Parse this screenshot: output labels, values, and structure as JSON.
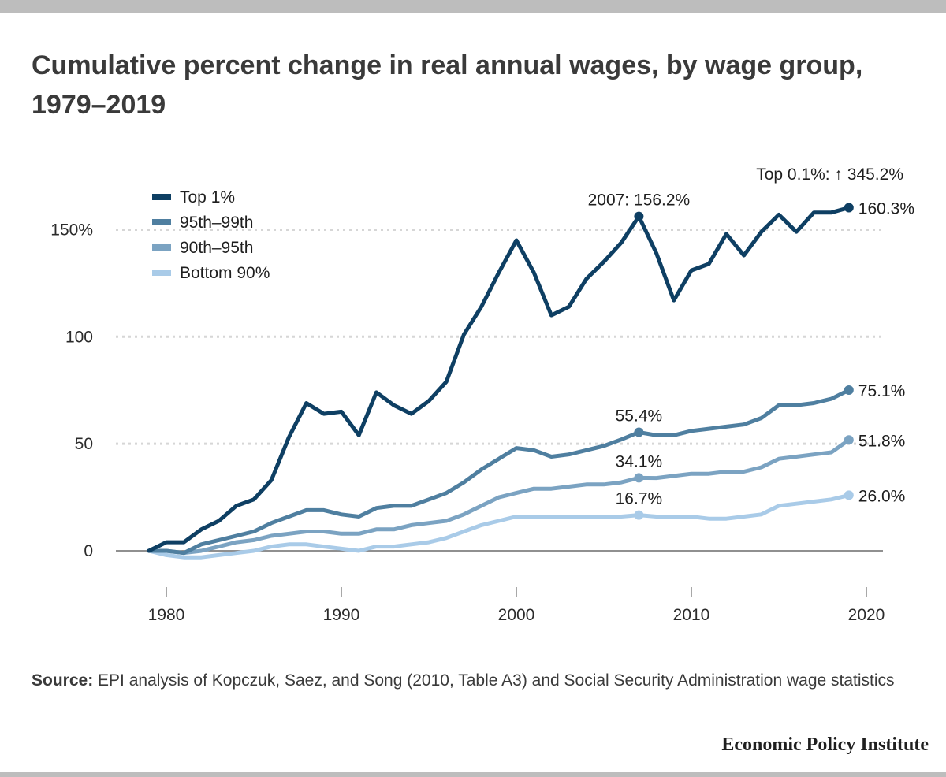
{
  "title": "Cumulative percent change in real annual wages, by wage group, 1979–2019",
  "source": {
    "label": "Source:",
    "text": " EPI analysis of Kopczuk, Saez, and Song (2010, Table A3) and Social Security Administration wage statistics"
  },
  "brand": "Economic Policy Institute",
  "chart_data": {
    "type": "line",
    "xlim": [
      1977,
      2021
    ],
    "ylim": [
      -20,
      170
    ],
    "x_ticks": [
      1980,
      1990,
      2000,
      2010,
      2020
    ],
    "x_tick_labels": [
      "1980",
      "1990",
      "2000",
      "2010",
      "2020"
    ],
    "y_ticks": [
      0,
      50,
      100,
      150
    ],
    "y_tick_labels": [
      "0",
      "50",
      "100",
      "150%"
    ],
    "grid": "horizontal dotted",
    "legend_position": "top-left",
    "x": [
      1979,
      1980,
      1981,
      1982,
      1983,
      1984,
      1985,
      1986,
      1987,
      1988,
      1989,
      1990,
      1991,
      1992,
      1993,
      1994,
      1995,
      1996,
      1997,
      1998,
      1999,
      2000,
      2001,
      2002,
      2003,
      2004,
      2005,
      2006,
      2007,
      2008,
      2009,
      2010,
      2011,
      2012,
      2013,
      2014,
      2015,
      2016,
      2017,
      2018,
      2019
    ],
    "series": [
      {
        "name": "Top 1%",
        "color": "#0e3f63",
        "values": [
          0,
          4,
          4,
          10,
          14,
          21,
          24,
          33,
          53,
          69,
          64,
          65,
          54,
          74,
          68,
          64,
          70,
          79,
          101,
          114,
          130,
          145,
          130,
          110,
          114,
          127,
          135,
          144,
          156.2,
          139,
          117,
          131,
          134,
          148,
          138,
          149,
          157,
          149,
          158,
          158,
          160.3
        ]
      },
      {
        "name": "95th–99th",
        "color": "#4f7fa0",
        "values": [
          0,
          0,
          -1,
          3,
          5,
          7,
          9,
          13,
          16,
          19,
          19,
          17,
          16,
          20,
          21,
          21,
          24,
          27,
          32,
          38,
          43,
          48,
          47,
          44,
          45,
          47,
          49,
          52,
          55.4,
          54,
          54,
          56,
          57,
          58,
          59,
          62,
          68,
          68,
          69,
          71,
          75.1
        ]
      },
      {
        "name": "90th–95th",
        "color": "#7ba3c2",
        "values": [
          0,
          0,
          -1,
          0,
          2,
          4,
          5,
          7,
          8,
          9,
          9,
          8,
          8,
          10,
          10,
          12,
          13,
          14,
          17,
          21,
          25,
          27,
          29,
          29,
          30,
          31,
          31,
          32,
          34.1,
          34,
          35,
          36,
          36,
          37,
          37,
          39,
          43,
          44,
          45,
          46,
          51.8
        ]
      },
      {
        "name": "Bottom 90%",
        "color": "#a9cbe8",
        "values": [
          0,
          -2,
          -3,
          -3,
          -2,
          -1,
          0,
          2,
          3,
          3,
          2,
          1,
          0,
          2,
          2,
          3,
          4,
          6,
          9,
          12,
          14,
          16,
          16,
          16,
          16,
          16,
          16,
          16,
          16.7,
          16,
          16,
          16,
          15,
          15,
          16,
          17,
          21,
          22,
          23,
          24,
          26.0
        ]
      }
    ],
    "annotations": [
      {
        "text": "2007: 156.2%",
        "series": 0,
        "x": 2007,
        "y": 156.2,
        "pos": "above"
      },
      {
        "text": "160.3%",
        "series": 0,
        "x": 2019,
        "y": 160.3,
        "pos": "right"
      },
      {
        "text": "Top 0.1%:  ↑  345.2%",
        "series": 0,
        "x": 2019,
        "y": 160.3,
        "pos": "top-note"
      },
      {
        "text": "55.4%",
        "series": 1,
        "x": 2007,
        "y": 55.4,
        "pos": "above"
      },
      {
        "text": "75.1%",
        "series": 1,
        "x": 2019,
        "y": 75.1,
        "pos": "right"
      },
      {
        "text": "34.1%",
        "series": 2,
        "x": 2007,
        "y": 34.1,
        "pos": "above"
      },
      {
        "text": "51.8%",
        "series": 2,
        "x": 2019,
        "y": 51.8,
        "pos": "right"
      },
      {
        "text": "16.7%",
        "series": 3,
        "x": 2007,
        "y": 16.7,
        "pos": "above"
      },
      {
        "text": "26.0%",
        "series": 3,
        "x": 2019,
        "y": 26.0,
        "pos": "right"
      }
    ]
  }
}
